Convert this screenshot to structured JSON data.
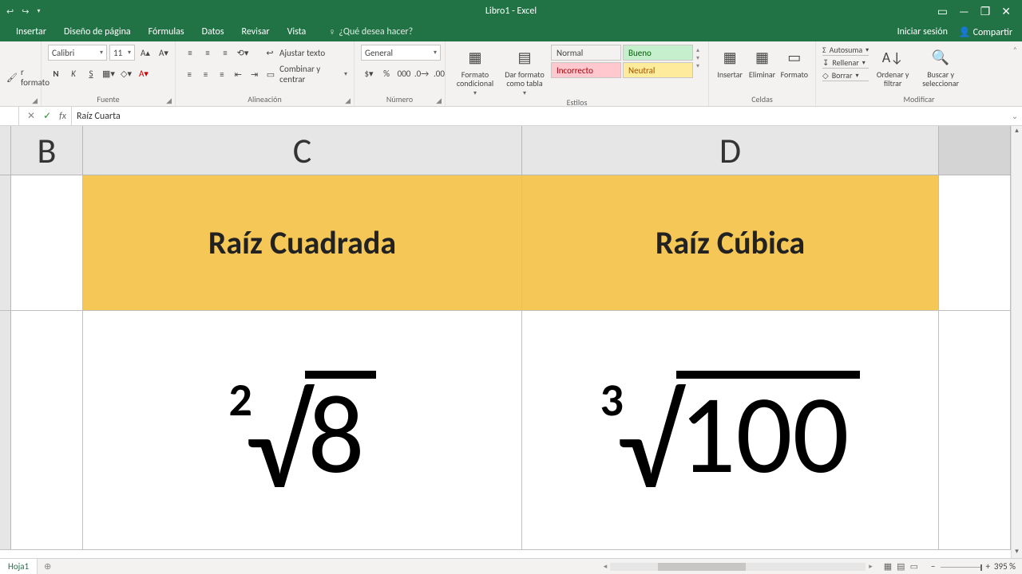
{
  "title": "Libro1 - Excel",
  "account": {
    "signin": "Iniciar sesión",
    "share": "Compartir"
  },
  "tabs": {
    "insertar": "Insertar",
    "diseno": "Diseño de página",
    "formulas": "Fórmulas",
    "datos": "Datos",
    "revisar": "Revisar",
    "vista": "Vista",
    "tellme": "¿Qué desea hacer?"
  },
  "ribbon": {
    "portapapeles": {
      "copiar_formato": "r formato"
    },
    "fuente": {
      "label": "Fuente",
      "font_name": "Calibri",
      "font_size": "11",
      "bold": "N",
      "italic": "K",
      "underline": "S"
    },
    "alineacion": {
      "label": "Alineación",
      "ajustar": "Ajustar texto",
      "combinar": "Combinar y centrar"
    },
    "numero": {
      "label": "Número",
      "format": "General"
    },
    "estilos": {
      "label": "Estilos",
      "formato_condicional": "Formato condicional",
      "dar_formato_tabla": "Dar formato como tabla",
      "normal": "Normal",
      "bueno": "Bueno",
      "incorrecto": "Incorrecto",
      "neutral": "Neutral",
      "colors": {
        "bueno_bg": "#c6efce",
        "bueno_fg": "#006100",
        "incorrecto_bg": "#ffc7ce",
        "incorrecto_fg": "#9c0006",
        "neutral_bg": "#ffeb9c",
        "neutral_fg": "#9c5700"
      }
    },
    "celdas": {
      "label": "Celdas",
      "insertar": "Insertar",
      "eliminar": "Eliminar",
      "formato": "Formato"
    },
    "modificar": {
      "label": "Modificar",
      "autosuma": "Autosuma",
      "rellenar": "Rellenar",
      "borrar": "Borrar",
      "ordenar": "Ordenar y filtrar",
      "buscar": "Buscar y seleccionar"
    }
  },
  "formula_bar": {
    "value": "Raíz Cuarta"
  },
  "grid": {
    "col_widths": {
      "rowhdr": 14,
      "B": 90,
      "C": 550,
      "D": 522,
      "E": 90
    },
    "columns": {
      "B": "B",
      "C": "C",
      "D": "D"
    },
    "header_bg": "#f4c757",
    "row1_height": 170,
    "row2_height": 300,
    "cells": {
      "C1": "Raíz Cuadrada",
      "D1": "Raíz Cúbica",
      "C2": {
        "index": "2",
        "radicand": "8"
      },
      "D2": {
        "index": "3",
        "radicand": "100"
      }
    }
  },
  "sheet": {
    "name": "Hoja1",
    "zoom": "395 %"
  }
}
